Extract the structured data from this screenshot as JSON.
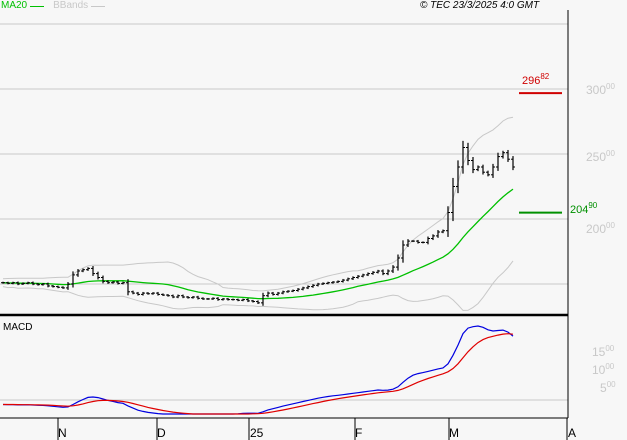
{
  "header": {
    "legend_ma": "MA20",
    "legend_bb": "BBands",
    "copyright": "© TEC 23/3/2025 4:0 GMT"
  },
  "colors": {
    "ma": "#00c000",
    "bb": "#c8c8c8",
    "macd": "#0000e0",
    "signal": "#e00000",
    "resistance": "#d00000",
    "support": "#009000"
  },
  "chart_data": [
    {
      "type": "ohlc",
      "title": "",
      "series": [
        {
          "name": "MA20",
          "indicator": "moving-average",
          "period": 20
        },
        {
          "name": "BBands",
          "indicator": "bollinger",
          "period": 20
        }
      ],
      "x_ticks": [
        "N",
        "D",
        "25",
        "F",
        "M",
        "A"
      ],
      "ylim": [
        120,
        320
      ],
      "y_ticks": [
        {
          "int": "300",
          "dec": "00"
        },
        {
          "int": "250",
          "dec": "00"
        },
        {
          "int": "200",
          "dec": "00"
        }
      ],
      "levels": [
        {
          "int": "296",
          "dec": "82",
          "value": 296.82,
          "kind": "resistance"
        },
        {
          "int": "204",
          "dec": "90",
          "value": 204.9,
          "kind": "support"
        }
      ],
      "closes": [
        151,
        150.5,
        151,
        150,
        150.5,
        151,
        150,
        149.5,
        150,
        148.5,
        148,
        147.5,
        147,
        150,
        157,
        160,
        161,
        162,
        158,
        155,
        152,
        151,
        151.5,
        150.5,
        151,
        144,
        143,
        142,
        143,
        142.5,
        143,
        142,
        141.5,
        141,
        140,
        141,
        140,
        139.5,
        140,
        139,
        138.5,
        138.5,
        139,
        138,
        138.5,
        138,
        138,
        137.5,
        138,
        137,
        136.5,
        135.5,
        141,
        143,
        142,
        143,
        144,
        144.5,
        145,
        146,
        147,
        148,
        149,
        150,
        150.5,
        151,
        151.5,
        152,
        153,
        154,
        155,
        156,
        157,
        158,
        159,
        160,
        158,
        160,
        163,
        170,
        180,
        183,
        183,
        182,
        182,
        185,
        187,
        190,
        191,
        205,
        225,
        240,
        255,
        245,
        238,
        240,
        236,
        234,
        240,
        248,
        251,
        246,
        240
      ]
    },
    {
      "type": "line",
      "title": "MACD",
      "series": [
        {
          "name": "MACD"
        },
        {
          "name": "Signal"
        }
      ],
      "y_ticks": [
        {
          "int": "15",
          "dec": "00"
        },
        {
          "int": "10",
          "dec": "00"
        },
        {
          "int": "5",
          "dec": "00"
        }
      ]
    }
  ]
}
